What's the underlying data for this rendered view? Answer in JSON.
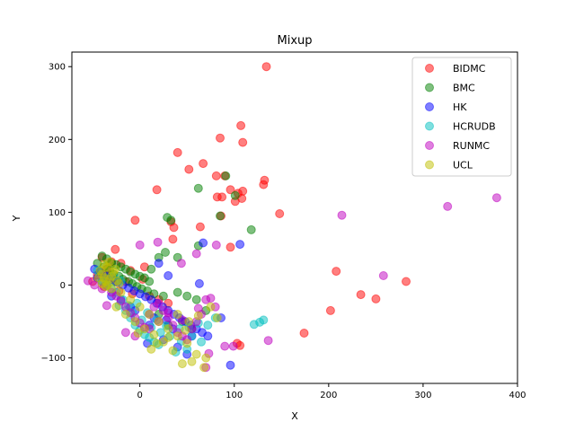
{
  "chart_data": {
    "type": "scatter",
    "title": "Mixup",
    "xlabel": "X",
    "ylabel": "Y",
    "xlim": [
      -72,
      400
    ],
    "ylim": [
      -135,
      320
    ],
    "xticks": [
      0,
      100,
      200,
      300,
      400
    ],
    "yticks": [
      -100,
      0,
      100,
      200,
      300
    ],
    "xtick_labels": [
      "0",
      "100",
      "200",
      "300",
      "400"
    ],
    "ytick_labels": [
      "−100",
      "0",
      "100",
      "200",
      "300"
    ],
    "grid": false,
    "legend_position": "top-right",
    "series": [
      {
        "name": "BIDMC",
        "color": "#ff0000",
        "points": [
          [
            134,
            300
          ],
          [
            107,
            219
          ],
          [
            85,
            202
          ],
          [
            109,
            196
          ],
          [
            40,
            182
          ],
          [
            52,
            159
          ],
          [
            67,
            167
          ],
          [
            81,
            150
          ],
          [
            90,
            150
          ],
          [
            96,
            131
          ],
          [
            104,
            126
          ],
          [
            109,
            129
          ],
          [
            18,
            131
          ],
          [
            82,
            121
          ],
          [
            87,
            121
          ],
          [
            101,
            115
          ],
          [
            108,
            119
          ],
          [
            131,
            138
          ],
          [
            132,
            144
          ],
          [
            -5,
            89
          ],
          [
            33,
            87
          ],
          [
            36,
            79
          ],
          [
            86,
            95
          ],
          [
            64,
            80
          ],
          [
            148,
            98
          ],
          [
            96,
            52
          ],
          [
            35,
            63
          ],
          [
            208,
            19
          ],
          [
            234,
            -13
          ],
          [
            250,
            -19
          ],
          [
            282,
            5
          ],
          [
            202,
            -35
          ],
          [
            174,
            -66
          ],
          [
            103,
            -80
          ],
          [
            106,
            -83
          ],
          [
            -26,
            49
          ],
          [
            -40,
            38
          ],
          [
            -30,
            32
          ],
          [
            -20,
            30
          ],
          [
            -10,
            20
          ],
          [
            5,
            25
          ],
          [
            -35,
            22
          ],
          [
            -45,
            14
          ],
          [
            -28,
            10
          ],
          [
            -15,
            5
          ],
          [
            3,
            8
          ],
          [
            -50,
            5
          ],
          [
            -38,
            -2
          ],
          [
            -22,
            -8
          ],
          [
            -8,
            -12
          ],
          [
            10,
            -15
          ],
          [
            20,
            -20
          ],
          [
            30,
            -25
          ]
        ]
      },
      {
        "name": "BMC",
        "color": "#008000",
        "points": [
          [
            91,
            150
          ],
          [
            62,
            133
          ],
          [
            101,
            123
          ],
          [
            29,
            93
          ],
          [
            33,
            89
          ],
          [
            85,
            95
          ],
          [
            62,
            54
          ],
          [
            118,
            76
          ],
          [
            20,
            38
          ],
          [
            27,
            45
          ],
          [
            40,
            38
          ],
          [
            12,
            22
          ],
          [
            -40,
            40
          ],
          [
            -35,
            36
          ],
          [
            -30,
            30
          ],
          [
            -25,
            28
          ],
          [
            -20,
            25
          ],
          [
            -15,
            22
          ],
          [
            -10,
            18
          ],
          [
            -5,
            15
          ],
          [
            0,
            12
          ],
          [
            5,
            10
          ],
          [
            10,
            5
          ],
          [
            -45,
            30
          ],
          [
            -38,
            25
          ],
          [
            -32,
            20
          ],
          [
            -28,
            15
          ],
          [
            -22,
            12
          ],
          [
            -18,
            8
          ],
          [
            -12,
            5
          ],
          [
            -8,
            2
          ],
          [
            -3,
            -2
          ],
          [
            2,
            -5
          ],
          [
            8,
            -8
          ],
          [
            15,
            -12
          ],
          [
            25,
            -15
          ],
          [
            40,
            -10
          ],
          [
            50,
            -15
          ],
          [
            60,
            -20
          ],
          [
            70,
            -35
          ],
          [
            45,
            -50
          ],
          [
            20,
            -40
          ],
          [
            30,
            -55
          ],
          [
            55,
            -60
          ],
          [
            -42,
            18
          ],
          [
            -36,
            10
          ],
          [
            -26,
            5
          ]
        ]
      },
      {
        "name": "HK",
        "color": "#0000ff",
        "points": [
          [
            106,
            56
          ],
          [
            67,
            58
          ],
          [
            63,
            2
          ],
          [
            30,
            13
          ],
          [
            20,
            30
          ],
          [
            -48,
            22
          ],
          [
            -42,
            18
          ],
          [
            -36,
            12
          ],
          [
            -30,
            8
          ],
          [
            -24,
            4
          ],
          [
            -18,
            0
          ],
          [
            -12,
            -4
          ],
          [
            -6,
            -8
          ],
          [
            0,
            -12
          ],
          [
            6,
            -16
          ],
          [
            12,
            -20
          ],
          [
            18,
            -25
          ],
          [
            24,
            -30
          ],
          [
            30,
            -35
          ],
          [
            36,
            -40
          ],
          [
            42,
            -45
          ],
          [
            48,
            -50
          ],
          [
            54,
            -55
          ],
          [
            60,
            -60
          ],
          [
            66,
            -65
          ],
          [
            72,
            -70
          ],
          [
            86,
            -45
          ],
          [
            96,
            -110
          ],
          [
            8,
            -80
          ],
          [
            25,
            -75
          ],
          [
            40,
            -85
          ],
          [
            50,
            -95
          ],
          [
            -10,
            -30
          ],
          [
            -20,
            -20
          ],
          [
            -30,
            -15
          ],
          [
            15,
            -45
          ],
          [
            35,
            -60
          ],
          [
            55,
            -70
          ],
          [
            -40,
            5
          ],
          [
            -45,
            10
          ],
          [
            -35,
            0
          ],
          [
            -5,
            -35
          ],
          [
            10,
            -55
          ],
          [
            28,
            -48
          ]
        ]
      },
      {
        "name": "HCRUDB",
        "color": "#00bfbf",
        "points": [
          [
            131,
            -48
          ],
          [
            127,
            -51
          ],
          [
            121,
            -54
          ],
          [
            44,
            -77
          ],
          [
            -22,
            -28
          ],
          [
            -15,
            -35
          ],
          [
            -10,
            -45
          ],
          [
            -5,
            -55
          ],
          [
            0,
            -62
          ],
          [
            5,
            -68
          ],
          [
            10,
            -72
          ],
          [
            15,
            -78
          ],
          [
            20,
            -82
          ],
          [
            -40,
            5
          ],
          [
            -35,
            0
          ],
          [
            -30,
            -5
          ],
          [
            -25,
            -10
          ],
          [
            -18,
            -20
          ],
          [
            -12,
            -28
          ],
          [
            -8,
            -38
          ],
          [
            2,
            -48
          ],
          [
            12,
            -58
          ],
          [
            22,
            -65
          ],
          [
            32,
            -70
          ],
          [
            42,
            -60
          ],
          [
            52,
            -58
          ],
          [
            62,
            -52
          ],
          [
            72,
            -55
          ],
          [
            80,
            -45
          ],
          [
            38,
            -92
          ],
          [
            50,
            -88
          ],
          [
            -3,
            -25
          ],
          [
            8,
            -38
          ],
          [
            18,
            -48
          ],
          [
            28,
            -56
          ],
          [
            55,
            -70
          ],
          [
            65,
            -78
          ],
          [
            -28,
            12
          ],
          [
            -20,
            6
          ],
          [
            -45,
            20
          ]
        ]
      },
      {
        "name": "RUNMC",
        "color": "#bf00bf",
        "points": [
          [
            378,
            120
          ],
          [
            326,
            108
          ],
          [
            214,
            96
          ],
          [
            258,
            13
          ],
          [
            136,
            -76
          ],
          [
            99,
            -84
          ],
          [
            90,
            -84
          ],
          [
            73,
            -94
          ],
          [
            70,
            -113
          ],
          [
            0,
            55
          ],
          [
            19,
            59
          ],
          [
            44,
            30
          ],
          [
            81,
            55
          ],
          [
            60,
            43
          ],
          [
            -55,
            6
          ],
          [
            -48,
            0
          ],
          [
            -40,
            -5
          ],
          [
            -35,
            -28
          ],
          [
            -30,
            -10
          ],
          [
            -25,
            -15
          ],
          [
            -20,
            -22
          ],
          [
            -15,
            -30
          ],
          [
            -10,
            -38
          ],
          [
            -5,
            -45
          ],
          [
            0,
            -52
          ],
          [
            5,
            -58
          ],
          [
            10,
            -40
          ],
          [
            15,
            -30
          ],
          [
            20,
            -25
          ],
          [
            25,
            -35
          ],
          [
            30,
            -45
          ],
          [
            35,
            -55
          ],
          [
            40,
            -65
          ],
          [
            45,
            -70
          ],
          [
            50,
            -75
          ],
          [
            55,
            -60
          ],
          [
            60,
            -50
          ],
          [
            65,
            -40
          ],
          [
            70,
            -20
          ],
          [
            75,
            -18
          ],
          [
            -15,
            -65
          ],
          [
            -5,
            -70
          ],
          [
            10,
            -60
          ],
          [
            20,
            -50
          ],
          [
            30,
            -38
          ],
          [
            45,
            -48
          ],
          [
            62,
            -32
          ],
          [
            80,
            -30
          ]
        ]
      },
      {
        "name": "UCL",
        "color": "#bfbf00",
        "points": [
          [
            -42,
            20
          ],
          [
            -40,
            15
          ],
          [
            -38,
            10
          ],
          [
            -36,
            5
          ],
          [
            -34,
            0
          ],
          [
            -32,
            8
          ],
          [
            -30,
            12
          ],
          [
            -28,
            18
          ],
          [
            -26,
            22
          ],
          [
            -24,
            6
          ],
          [
            -22,
            2
          ],
          [
            -35,
            25
          ],
          [
            -44,
            10
          ],
          [
            -38,
            28
          ],
          [
            -32,
            32
          ],
          [
            -40,
            2
          ],
          [
            -36,
            -2
          ],
          [
            -30,
            -5
          ],
          [
            -20,
            -10
          ],
          [
            -10,
            -20
          ],
          [
            0,
            -30
          ],
          [
            10,
            -40
          ],
          [
            20,
            -50
          ],
          [
            30,
            -60
          ],
          [
            40,
            -70
          ],
          [
            50,
            -80
          ],
          [
            60,
            -95
          ],
          [
            70,
            -100
          ],
          [
            55,
            -105
          ],
          [
            45,
            -108
          ],
          [
            68,
            -113
          ],
          [
            35,
            -90
          ],
          [
            25,
            -78
          ],
          [
            15,
            -68
          ],
          [
            5,
            -60
          ],
          [
            -5,
            -50
          ],
          [
            -15,
            -40
          ],
          [
            -25,
            -30
          ],
          [
            40,
            -40
          ],
          [
            52,
            -50
          ],
          [
            62,
            -42
          ],
          [
            75,
            -30
          ],
          [
            82,
            -45
          ],
          [
            48,
            -62
          ],
          [
            30,
            -72
          ],
          [
            18,
            -80
          ],
          [
            -2,
            -66
          ],
          [
            12,
            -88
          ]
        ]
      }
    ]
  }
}
